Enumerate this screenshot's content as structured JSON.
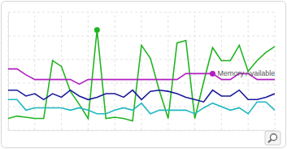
{
  "chart_data": {
    "type": "line",
    "x": [
      0,
      1,
      2,
      3,
      4,
      5,
      6,
      7,
      8,
      9,
      10,
      11,
      12,
      13,
      14,
      15,
      16,
      17,
      18,
      19,
      20,
      21,
      22,
      23,
      24,
      25,
      26,
      27,
      28,
      29,
      30
    ],
    "series": [
      {
        "color": "#22b522",
        "values": [
          10,
          12,
          11,
          10,
          10,
          59,
          54,
          33,
          22,
          10,
          85,
          10,
          11,
          10,
          8,
          72,
          61,
          34,
          10,
          74,
          76,
          10,
          41,
          70,
          59,
          59,
          72,
          50,
          59,
          66,
          71
        ]
      },
      {
        "name": "Memory Available",
        "color": "#b020c0",
        "values": [
          52,
          52,
          47,
          43,
          43,
          43,
          43,
          43,
          39,
          43,
          43,
          43,
          43,
          43,
          43,
          43,
          43,
          43,
          43,
          43,
          48,
          48,
          48,
          48,
          43,
          43,
          48,
          48,
          43,
          43,
          43
        ]
      },
      {
        "color": "#1a1a9a",
        "values": [
          34,
          34,
          29,
          31,
          26,
          31,
          28,
          34,
          29,
          26,
          28,
          31,
          31,
          28,
          34,
          26,
          33,
          34,
          33,
          31,
          28,
          26,
          24,
          34,
          29,
          29,
          34,
          26,
          26,
          28,
          31
        ]
      },
      {
        "color": "#20b8c0",
        "values": [
          26,
          26,
          17,
          19,
          19,
          19,
          19,
          17,
          19,
          17,
          14,
          14,
          17,
          19,
          17,
          23,
          14,
          17,
          17,
          17,
          17,
          14,
          19,
          23,
          20,
          17,
          19,
          14,
          24,
          24,
          17
        ]
      }
    ],
    "annotations": [
      {
        "x": 10,
        "y": 85,
        "color": "#22b522"
      },
      {
        "text": "Memory Available",
        "x": 23,
        "y": 48,
        "color": "#b020c0"
      }
    ],
    "xlim": [
      0,
      30
    ],
    "xticks": [
      0,
      3,
      6,
      9,
      12,
      15,
      18,
      21,
      24,
      27,
      30
    ],
    "ylim": [
      0,
      100
    ],
    "yticks": [
      0,
      20,
      40,
      60,
      80,
      100
    ],
    "grid": true,
    "tick_labels": false
  }
}
